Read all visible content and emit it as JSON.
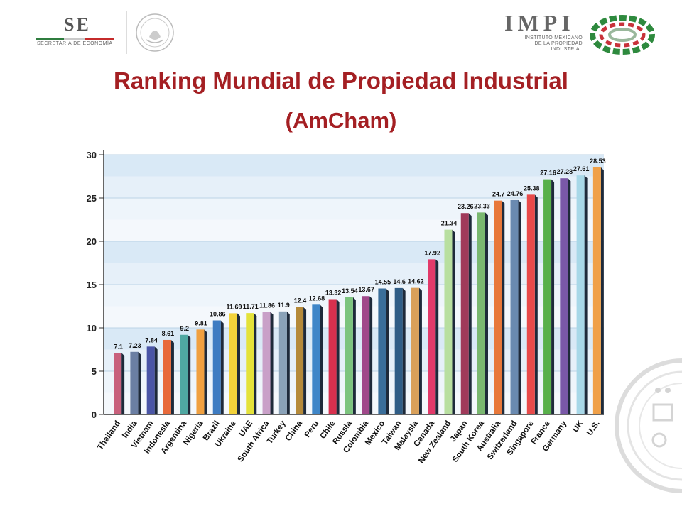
{
  "header": {
    "left_logo": {
      "abbr": "SE",
      "name": "SECRETARÍA DE ECONOMÍA",
      "icon": "se-logo-icon"
    },
    "seal": {
      "icon": "mexican-seal-icon"
    },
    "right_logo": {
      "abbr": "IMPI",
      "name_lines": [
        "INSTITUTO MEXICANO",
        "DE LA PROPIEDAD",
        "INDUSTRIAL"
      ],
      "icon": "impi-emblem-icon"
    }
  },
  "title": "Ranking Mundial de Propiedad Industrial",
  "subtitle": "(AmCham)",
  "chart_data": {
    "type": "bar",
    "title": "",
    "xlabel": "",
    "ylabel": "",
    "ylim": [
      0,
      30
    ],
    "yticks": [
      0,
      5,
      10,
      15,
      20,
      25,
      30
    ],
    "grid": true,
    "categories": [
      "Thailand",
      "India",
      "Vietnam",
      "Indonesia",
      "Argentina",
      "Nigeria",
      "Brazil",
      "Ukraine",
      "UAE",
      "South Africa",
      "Turkey",
      "China",
      "Peru",
      "Chile",
      "Russia",
      "Colombia",
      "Mexico",
      "Taiwan",
      "Malaysia",
      "Canada",
      "New Zealand",
      "Japan",
      "South Korea",
      "Australia",
      "Switzerland",
      "Singapore",
      "France",
      "Germany",
      "UK",
      "U.S."
    ],
    "values": [
      7.1,
      7.23,
      7.84,
      8.61,
      9.2,
      9.81,
      10.86,
      11.69,
      11.71,
      11.86,
      11.9,
      12.4,
      12.68,
      13.32,
      13.54,
      13.67,
      14.55,
      14.6,
      14.62,
      17.92,
      21.34,
      23.26,
      23.33,
      24.7,
      24.76,
      25.38,
      27.16,
      27.28,
      27.61,
      28.53
    ],
    "labels": [
      "7.1",
      "7.23",
      "7.84",
      "8.61",
      "9.2",
      "9.81",
      "10.86",
      "11.69",
      "11.71",
      "11.86",
      "11.9",
      "12.4",
      "12.68",
      "13.32",
      "13.54",
      "13.67",
      "14.55",
      "14.6",
      "14.62",
      "17.92",
      "21.34",
      "23.26",
      "23.33",
      "24.7",
      "24.76",
      "25.38",
      "27.16",
      "27.28",
      "27.61",
      "28.53"
    ],
    "colors": [
      "#c8607c",
      "#6b7fa3",
      "#4a55a6",
      "#e8693a",
      "#4fa8a2",
      "#f0a040",
      "#3e7cc2",
      "#f2d23a",
      "#e4e23a",
      "#c9a0c8",
      "#8aa2b8",
      "#b58a3a",
      "#3f86c8",
      "#d8304e",
      "#7cc47e",
      "#a0488a",
      "#3a6e9a",
      "#2f5d86",
      "#d9a05a",
      "#e23a6a",
      "#b8dfa0",
      "#a03a5a",
      "#7ab870",
      "#e8783a",
      "#6a8ab0",
      "#e84a4a",
      "#58b04a",
      "#7a58a8",
      "#a8d8e8",
      "#f0a048"
    ]
  }
}
